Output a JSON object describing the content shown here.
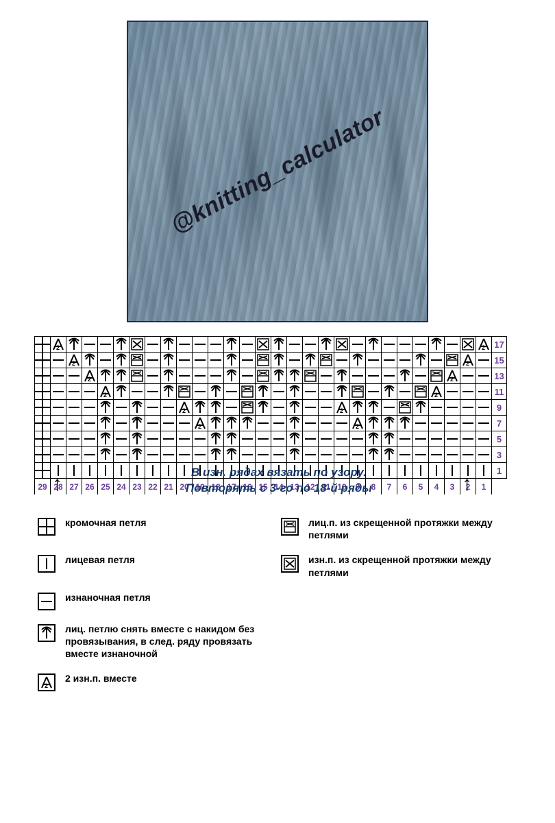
{
  "photo": {
    "watermark": "@knitting_calculator",
    "border_color": "#1a2a6c",
    "yarn_color_light": "#9bb3c4",
    "yarn_color_dark": "#5a7488"
  },
  "chart": {
    "cols": 29,
    "row_numbers": [
      17,
      15,
      13,
      11,
      9,
      7,
      5,
      3,
      1
    ],
    "col_numbers": [
      29,
      28,
      27,
      26,
      25,
      24,
      23,
      22,
      21,
      20,
      19,
      18,
      17,
      16,
      15,
      14,
      13,
      12,
      11,
      10,
      9,
      8,
      7,
      6,
      5,
      4,
      3,
      2,
      1
    ],
    "number_color": "#6a3d9a",
    "grid_color": "#000000",
    "rows_symbols": [
      [
        "E",
        "A2",
        "S",
        "P",
        "P",
        "S",
        "MP",
        "P",
        "S",
        "P",
        "P",
        "P",
        "S",
        "P",
        "MP",
        "S",
        "P",
        "P",
        "S",
        "MP",
        "P",
        "S",
        "P",
        "P",
        "P",
        "S",
        "P",
        "MP",
        "A2"
      ],
      [
        "E",
        "P",
        "A2",
        "S",
        "P",
        "S",
        "MK",
        "P",
        "S",
        "P",
        "P",
        "P",
        "S",
        "P",
        "MK",
        "S",
        "P",
        "S",
        "MK",
        "P",
        "S",
        "P",
        "P",
        "P",
        "S",
        "P",
        "MK",
        "A2",
        "P"
      ],
      [
        "E",
        "P",
        "P",
        "A2",
        "S",
        "S",
        "MK",
        "P",
        "S",
        "P",
        "P",
        "P",
        "S",
        "P",
        "MK",
        "S",
        "S",
        "MK",
        "P",
        "S",
        "P",
        "P",
        "P",
        "S",
        "P",
        "MK",
        "A2",
        "P",
        "P"
      ],
      [
        "E",
        "P",
        "P",
        "P",
        "A2",
        "S",
        "P",
        "P",
        "S",
        "MK",
        "P",
        "S",
        "P",
        "MK",
        "S",
        "P",
        "S",
        "P",
        "P",
        "S",
        "MK",
        "P",
        "S",
        "P",
        "MK",
        "A2",
        "P",
        "P",
        "P"
      ],
      [
        "E",
        "P",
        "P",
        "P",
        "S",
        "P",
        "S",
        "P",
        "P",
        "A2",
        "S",
        "S",
        "P",
        "MK",
        "S",
        "P",
        "S",
        "P",
        "P",
        "A2",
        "S",
        "S",
        "P",
        "MK",
        "S",
        "P",
        "P",
        "P",
        "P"
      ],
      [
        "E",
        "P",
        "P",
        "P",
        "S",
        "P",
        "S",
        "P",
        "P",
        "P",
        "A2",
        "S",
        "S",
        "S",
        "P",
        "P",
        "S",
        "P",
        "P",
        "P",
        "A2",
        "S",
        "S",
        "S",
        "P",
        "P",
        "P",
        "P",
        "P"
      ],
      [
        "E",
        "P",
        "P",
        "P",
        "S",
        "P",
        "S",
        "P",
        "P",
        "P",
        "P",
        "S",
        "S",
        "P",
        "P",
        "P",
        "S",
        "P",
        "P",
        "P",
        "P",
        "S",
        "S",
        "P",
        "P",
        "P",
        "P",
        "P",
        "P"
      ],
      [
        "E",
        "P",
        "P",
        "P",
        "S",
        "P",
        "S",
        "P",
        "P",
        "P",
        "P",
        "S",
        "S",
        "P",
        "P",
        "P",
        "S",
        "P",
        "P",
        "P",
        "P",
        "S",
        "S",
        "P",
        "P",
        "P",
        "P",
        "P",
        "P"
      ],
      [
        "E",
        "K",
        "K",
        "K",
        "K",
        "K",
        "K",
        "K",
        "K",
        "K",
        "K",
        "K",
        "K",
        "K",
        "K",
        "K",
        "K",
        "K",
        "K",
        "K",
        "K",
        "K",
        "K",
        "K",
        "K",
        "K",
        "K",
        "K",
        "K"
      ]
    ]
  },
  "arrows": {
    "left_col": 28,
    "right_col": 2
  },
  "instructions": {
    "line1": "В изн. рядах вязать по узору.",
    "line2": "Повторять с 3-го по 18-й ряды",
    "color": "#1a3a6a"
  },
  "legend": [
    {
      "sym": "E",
      "text": "кромочная петля",
      "col": 1
    },
    {
      "sym": "MK",
      "text": "лиц.п. из скрещенной протяжки между петлями",
      "col": 2
    },
    {
      "sym": "K",
      "text": "лицевая петля",
      "col": 1
    },
    {
      "sym": "MP",
      "text": "изн.п. из скрещенной протяжки между петлями",
      "col": 2
    },
    {
      "sym": "P",
      "text": "изнаночная петля",
      "col": 1
    },
    {
      "sym": "S",
      "text": "лиц. петлю снять вместе с накидом без провязывания, в след. ряду провязать вместе изнаночной",
      "col": 1
    },
    {
      "sym": "A2",
      "text": "2 изн.п. вместе",
      "col": 1
    }
  ],
  "colors": {
    "background": "#ffffff",
    "text": "#000000"
  }
}
